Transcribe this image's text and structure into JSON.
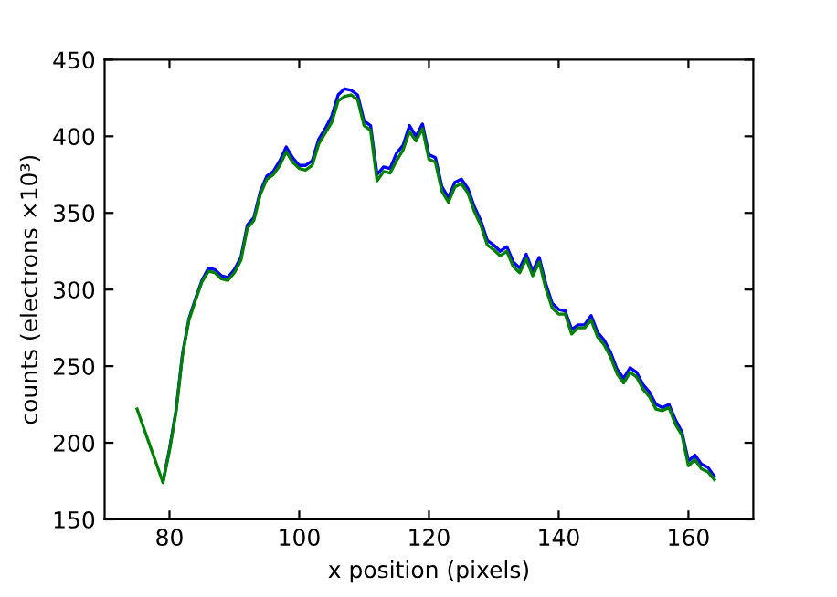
{
  "chart_data": {
    "type": "line",
    "xlabel": "x position (pixels)",
    "ylabel": "counts (electrons ×10³)",
    "xlim": [
      70,
      170
    ],
    "ylim": [
      150,
      450
    ],
    "xticks": [
      80,
      100,
      120,
      140,
      160
    ],
    "yticks": [
      150,
      200,
      250,
      300,
      350,
      400,
      450
    ],
    "grid": false,
    "legend": false,
    "x": [
      75,
      76,
      77,
      78,
      79,
      80,
      81,
      82,
      83,
      84,
      85,
      86,
      87,
      88,
      89,
      90,
      91,
      92,
      93,
      94,
      95,
      96,
      97,
      98,
      99,
      100,
      101,
      102,
      103,
      104,
      105,
      106,
      107,
      108,
      109,
      110,
      111,
      112,
      113,
      114,
      115,
      116,
      117,
      118,
      119,
      120,
      121,
      122,
      123,
      124,
      125,
      126,
      127,
      128,
      129,
      130,
      131,
      132,
      133,
      134,
      135,
      136,
      137,
      138,
      139,
      140,
      141,
      142,
      143,
      144,
      145,
      146,
      147,
      148,
      149,
      150,
      151,
      152,
      153,
      154,
      155,
      156,
      157,
      158,
      159,
      160,
      161,
      162,
      163,
      164
    ],
    "series": [
      {
        "color": "#0000ff",
        "values": [
          null,
          null,
          null,
          null,
          175,
          196,
          221,
          258,
          281,
          294,
          306,
          314,
          313,
          309,
          308,
          313,
          321,
          342,
          347,
          364,
          374,
          377,
          384,
          393,
          386,
          381,
          381,
          384,
          398,
          405,
          413,
          427,
          431,
          430,
          427,
          410,
          407,
          375,
          380,
          379,
          389,
          394,
          407,
          400,
          408,
          388,
          386,
          367,
          360,
          370,
          372,
          366,
          354,
          345,
          332,
          329,
          325,
          328,
          318,
          314,
          323,
          312,
          321,
          304,
          291,
          287,
          286,
          274,
          277,
          277,
          283,
          272,
          267,
          259,
          248,
          242,
          249,
          246,
          238,
          233,
          225,
          223,
          225,
          215,
          207,
          188,
          192,
          186,
          184,
          178
        ]
      },
      {
        "color": "#008000",
        "values": [
          222,
          210,
          198,
          186,
          174,
          195,
          220,
          257,
          280,
          293,
          305,
          312,
          311,
          307,
          306,
          311,
          319,
          340,
          345,
          362,
          372,
          375,
          381,
          390,
          383,
          379,
          378,
          381,
          395,
          402,
          409,
          423,
          426,
          427,
          424,
          407,
          404,
          371,
          377,
          376,
          384,
          391,
          403,
          397,
          405,
          385,
          383,
          364,
          357,
          367,
          369,
          363,
          351,
          342,
          329,
          326,
          322,
          325,
          315,
          311,
          320,
          309,
          318,
          301,
          288,
          284,
          284,
          271,
          275,
          275,
          280,
          269,
          264,
          256,
          245,
          239,
          246,
          243,
          235,
          230,
          222,
          221,
          223,
          212,
          205,
          185,
          189,
          183,
          181,
          176
        ]
      }
    ]
  }
}
